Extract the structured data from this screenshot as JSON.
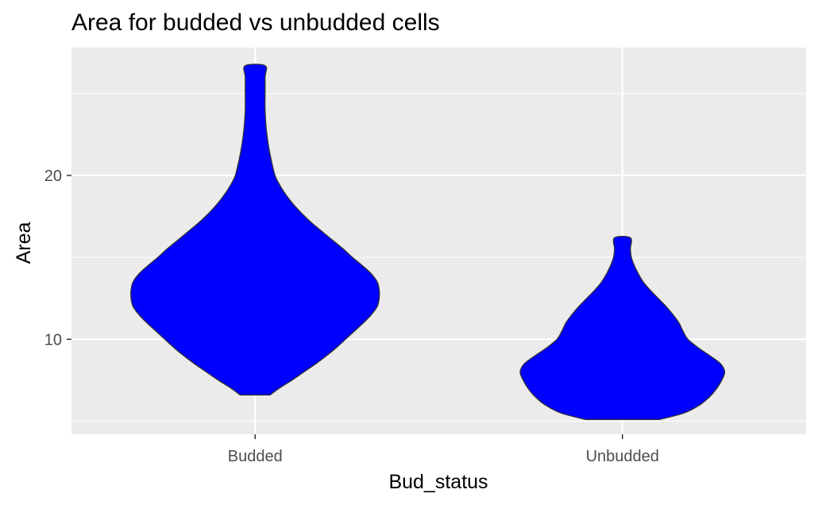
{
  "chart_data": {
    "type": "violin",
    "title": "Area for budded vs unbudded cells",
    "xlabel": "Bud_status",
    "ylabel": "Area",
    "categories": [
      "Budded",
      "Unbudded"
    ],
    "ylim": [
      4.2,
      27.8
    ],
    "yticks": [
      10,
      20
    ],
    "grid": true,
    "fill_color": "#0000FF",
    "outline_color": "#333333",
    "panel_color": "#EBEBEB",
    "violins": [
      {
        "category": "Budded",
        "min": 6.6,
        "max": 26.7,
        "profile": [
          [
            6.6,
            0.15
          ],
          [
            7.0,
            0.24
          ],
          [
            7.5,
            0.37
          ],
          [
            8.0,
            0.49
          ],
          [
            8.5,
            0.61
          ],
          [
            9.0,
            0.72
          ],
          [
            9.5,
            0.82
          ],
          [
            10.0,
            0.91
          ],
          [
            10.5,
            1.0
          ],
          [
            11.0,
            1.09
          ],
          [
            11.5,
            1.17
          ],
          [
            12.0,
            1.23
          ],
          [
            12.5,
            1.25
          ],
          [
            13.0,
            1.25
          ],
          [
            13.5,
            1.23
          ],
          [
            14.0,
            1.17
          ],
          [
            14.5,
            1.08
          ],
          [
            15.0,
            0.98
          ],
          [
            15.5,
            0.89
          ],
          [
            16.0,
            0.79
          ],
          [
            16.5,
            0.69
          ],
          [
            17.0,
            0.59
          ],
          [
            17.5,
            0.5
          ],
          [
            18.0,
            0.42
          ],
          [
            18.5,
            0.35
          ],
          [
            19.0,
            0.29
          ],
          [
            19.5,
            0.24
          ],
          [
            20.0,
            0.2
          ],
          [
            21.0,
            0.16
          ],
          [
            22.0,
            0.13
          ],
          [
            23.0,
            0.11
          ],
          [
            24.0,
            0.1
          ],
          [
            25.0,
            0.1
          ],
          [
            26.0,
            0.1
          ],
          [
            26.7,
            0.1
          ]
        ]
      },
      {
        "category": "Unbudded",
        "min": 5.1,
        "max": 16.2,
        "profile": [
          [
            5.1,
            0.37
          ],
          [
            5.5,
            0.62
          ],
          [
            6.0,
            0.78
          ],
          [
            6.5,
            0.88
          ],
          [
            7.0,
            0.95
          ],
          [
            7.5,
            1.0
          ],
          [
            8.0,
            1.03
          ],
          [
            8.5,
            0.99
          ],
          [
            9.0,
            0.88
          ],
          [
            9.5,
            0.76
          ],
          [
            10.0,
            0.66
          ],
          [
            10.5,
            0.61
          ],
          [
            11.0,
            0.57
          ],
          [
            11.5,
            0.51
          ],
          [
            12.0,
            0.44
          ],
          [
            12.5,
            0.36
          ],
          [
            13.0,
            0.28
          ],
          [
            13.5,
            0.21
          ],
          [
            14.0,
            0.16
          ],
          [
            14.5,
            0.12
          ],
          [
            15.0,
            0.09
          ],
          [
            15.5,
            0.08
          ],
          [
            16.2,
            0.08
          ]
        ]
      }
    ]
  }
}
